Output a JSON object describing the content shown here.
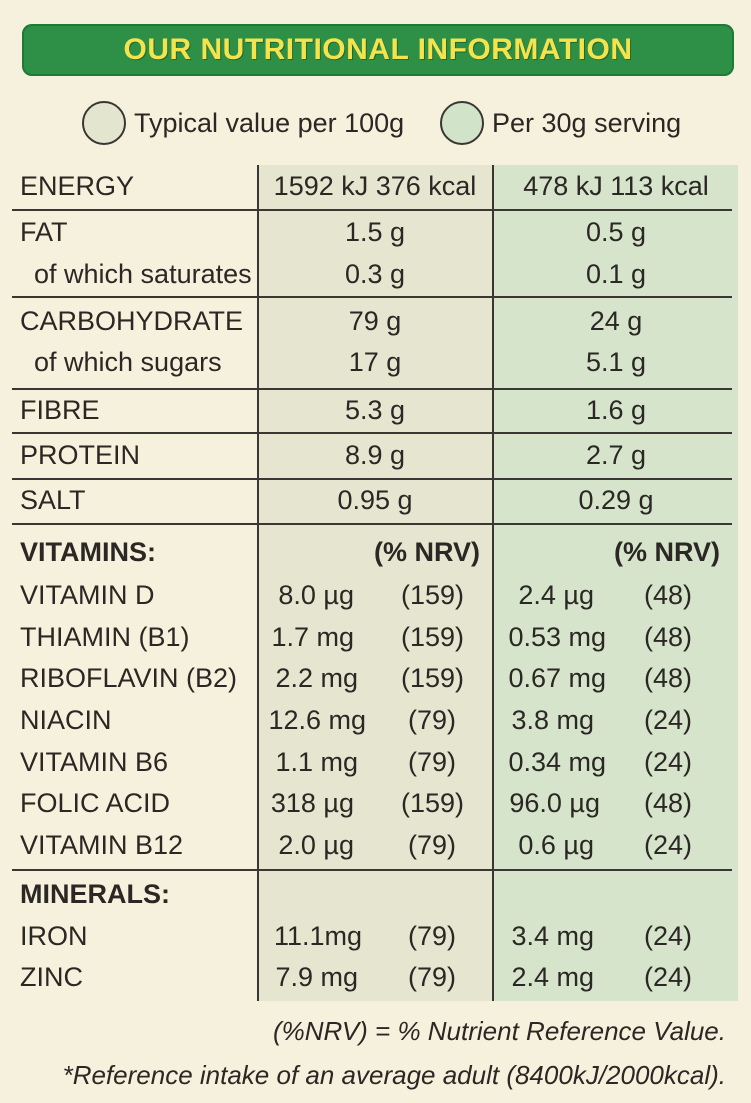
{
  "title": "OUR NUTRITIONAL INFORMATION",
  "legend": {
    "per100g": "Typical value per 100g",
    "per30g": "Per 30g serving"
  },
  "table": {
    "rows": [
      {
        "label": "ENERGY",
        "v100": "1592 kJ  376 kcal",
        "v30": "478 kJ  113 kcal"
      },
      {
        "label": "FAT",
        "v100": "1.5 g",
        "v30": "0.5 g"
      },
      {
        "label": "of which saturates",
        "v100": "0.3 g",
        "v30": "0.1 g"
      },
      {
        "label": "CARBOHYDRATE",
        "v100": "79 g",
        "v30": "24 g"
      },
      {
        "label": "of which sugars",
        "v100": "17 g",
        "v30": "5.1 g"
      },
      {
        "label": "FIBRE",
        "v100": "5.3 g",
        "v30": "1.6 g"
      },
      {
        "label": "PROTEIN",
        "v100": "8.9 g",
        "v30": "2.7 g"
      },
      {
        "label": "SALT",
        "v100": "0.95 g",
        "v30": "0.29 g"
      }
    ],
    "vitamins_heading": "VITAMINS:",
    "nrv_heading": "(% NRV)",
    "vitamins": [
      {
        "label": "VITAMIN D",
        "v100": "8.0 µg",
        "n100": "(159)",
        "v30": "2.4 µg",
        "n30": "(48)"
      },
      {
        "label": "THIAMIN (B1)",
        "v100": "1.7 mg",
        "n100": "(159)",
        "v30": "0.53 mg",
        "n30": "(48)"
      },
      {
        "label": "RIBOFLAVIN (B2)",
        "v100": "2.2 mg",
        "n100": "(159)",
        "v30": "0.67 mg",
        "n30": "(48)"
      },
      {
        "label": "NIACIN",
        "v100": "12.6 mg",
        "n100": "(79)",
        "v30": "3.8 mg",
        "n30": "(24)"
      },
      {
        "label": "VITAMIN B6",
        "v100": "1.1 mg",
        "n100": "(79)",
        "v30": "0.34 mg",
        "n30": "(24)"
      },
      {
        "label": "FOLIC ACID",
        "v100": "318 µg",
        "n100": "(159)",
        "v30": "96.0 µg",
        "n30": "(48)"
      },
      {
        "label": "VITAMIN B12",
        "v100": "2.0 µg",
        "n100": "(79)",
        "v30": "0.6 µg",
        "n30": "(24)"
      }
    ],
    "minerals_heading": "MINERALS:",
    "minerals": [
      {
        "label": "IRON",
        "v100": "11.1mg",
        "n100": "(79)",
        "v30": "3.4 mg",
        "n30": "(24)"
      },
      {
        "label": "ZINC",
        "v100": "7.9 mg",
        "n100": "(79)",
        "v30": "2.4 mg",
        "n30": "(24)"
      }
    ]
  },
  "footnotes": {
    "nrv": "(%NRV) = % Nutrient Reference Value.",
    "reference": "*Reference intake of an average adult (8400kJ/2000kcal)."
  },
  "colors": {
    "banner": "#2d9046",
    "banner_text": "#f5e34d",
    "col100": "#e5e5d0",
    "col30": "#d5e4cb"
  }
}
